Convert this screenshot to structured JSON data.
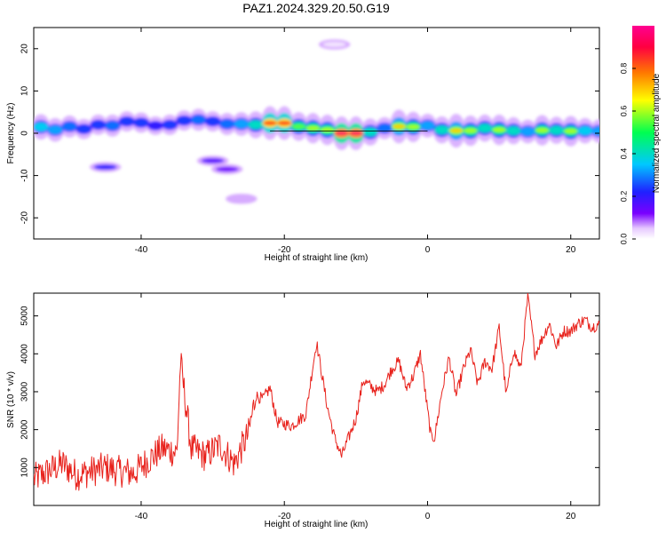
{
  "title": "PAZ1.2024.329.20.50.G19",
  "chart_data": [
    {
      "type": "heatmap",
      "xlabel": "Height of straight line (km)",
      "ylabel": "Frequency (Hz)",
      "xlim": [
        -55,
        24
      ],
      "ylim": [
        -25,
        25
      ],
      "xticks": [
        -40,
        -20,
        0,
        20
      ],
      "yticks": [
        -20,
        -10,
        0,
        10,
        20
      ],
      "colorbar": {
        "label": "Normalized spectral amplitude",
        "range": [
          0,
          1
        ],
        "ticks": [
          0.0,
          0.2,
          0.4,
          0.6,
          0.8
        ],
        "tick_labels": [
          "0.0",
          "0.2",
          "0.4",
          "0.6",
          "0.8"
        ],
        "colormap": [
          "#ffffff",
          "#e6c8ff",
          "#7a00ff",
          "#2020ff",
          "#00c8ff",
          "#00ff50",
          "#ffff00",
          "#ff7800",
          "#ff0040",
          "#ff0090"
        ]
      },
      "ridge": [
        {
          "x": -54,
          "f": 1.5,
          "a": 0.45
        },
        {
          "x": -52,
          "f": 0.8,
          "a": 0.4
        },
        {
          "x": -50,
          "f": 1.6,
          "a": 0.35
        },
        {
          "x": -48,
          "f": 1.0,
          "a": 0.3
        },
        {
          "x": -46,
          "f": 2.0,
          "a": 0.3
        },
        {
          "x": -44,
          "f": 1.8,
          "a": 0.35
        },
        {
          "x": -42,
          "f": 2.8,
          "a": 0.3
        },
        {
          "x": -40,
          "f": 2.5,
          "a": 0.3
        },
        {
          "x": -38,
          "f": 1.8,
          "a": 0.25
        },
        {
          "x": -36,
          "f": 2.0,
          "a": 0.3
        },
        {
          "x": -34,
          "f": 3.0,
          "a": 0.3
        },
        {
          "x": -32,
          "f": 3.2,
          "a": 0.35
        },
        {
          "x": -30,
          "f": 2.8,
          "a": 0.3
        },
        {
          "x": -28,
          "f": 2.2,
          "a": 0.35
        },
        {
          "x": -26,
          "f": 2.2,
          "a": 0.4
        },
        {
          "x": -24,
          "f": 2.0,
          "a": 0.5
        },
        {
          "x": -22,
          "f": 2.4,
          "a": 0.85
        },
        {
          "x": -20,
          "f": 2.4,
          "a": 0.85
        },
        {
          "x": -18,
          "f": 1.6,
          "a": 0.55
        },
        {
          "x": -16,
          "f": 1.2,
          "a": 0.6
        },
        {
          "x": -14,
          "f": 0.8,
          "a": 0.6
        },
        {
          "x": -12,
          "f": 0.0,
          "a": 0.95
        },
        {
          "x": -10,
          "f": 0.0,
          "a": 0.95
        },
        {
          "x": -8,
          "f": 0.3,
          "a": 0.5
        },
        {
          "x": -6,
          "f": 1.2,
          "a": 0.35
        },
        {
          "x": -4,
          "f": 1.6,
          "a": 0.7
        },
        {
          "x": -2,
          "f": 1.5,
          "a": 0.6
        },
        {
          "x": 0,
          "f": 1.8,
          "a": 0.4
        },
        {
          "x": 2,
          "f": 0.8,
          "a": 0.5
        },
        {
          "x": 4,
          "f": 0.6,
          "a": 0.7
        },
        {
          "x": 6,
          "f": 0.6,
          "a": 0.6
        },
        {
          "x": 8,
          "f": 1.2,
          "a": 0.5
        },
        {
          "x": 10,
          "f": 0.8,
          "a": 0.6
        },
        {
          "x": 12,
          "f": 0.6,
          "a": 0.5
        },
        {
          "x": 14,
          "f": 0.4,
          "a": 0.4
        },
        {
          "x": 16,
          "f": 0.7,
          "a": 0.6
        },
        {
          "x": 18,
          "f": 0.7,
          "a": 0.5
        },
        {
          "x": 20,
          "f": 0.5,
          "a": 0.6
        },
        {
          "x": 22,
          "f": 0.6,
          "a": 0.45
        },
        {
          "x": 24,
          "f": 0.5,
          "a": 0.4
        }
      ],
      "secondary_features": [
        {
          "x": -45,
          "f": -8.0,
          "a": 0.4
        },
        {
          "x": -30,
          "f": -6.5,
          "a": 0.3
        },
        {
          "x": -28,
          "f": -8.5,
          "a": 0.25
        },
        {
          "x": -26,
          "f": -15.5,
          "a": 0.12
        },
        {
          "x": -13,
          "f": 21.0,
          "a": 0.05
        }
      ]
    },
    {
      "type": "line",
      "xlabel": "Height of straight line (km)",
      "ylabel": "SNR (10 * v/v)",
      "xlim": [
        -55,
        24
      ],
      "ylim": [
        0,
        5600
      ],
      "xticks": [
        -40,
        -20,
        0,
        20
      ],
      "yticks": [
        1000,
        2000,
        3000,
        4000,
        5000
      ],
      "series": [
        {
          "color": "#e8221c",
          "x": [
            -55,
            -53,
            -51,
            -49,
            -47,
            -45,
            -43,
            -41,
            -39,
            -37,
            -35,
            -34.5,
            -33,
            -31,
            -29,
            -27,
            -25,
            -24,
            -23,
            -22,
            -21,
            -19,
            -17,
            -16,
            -15.5,
            -14,
            -13,
            -12,
            -10,
            -9,
            -7,
            -6,
            -5,
            -4,
            -3,
            -2,
            -1,
            0,
            0.5,
            1,
            2,
            3,
            4,
            5,
            6,
            7,
            8,
            9,
            10,
            11,
            12,
            13,
            14,
            15,
            16,
            17,
            18,
            19,
            20,
            21,
            22,
            23,
            24
          ],
          "y": [
            700,
            900,
            1100,
            800,
            900,
            1000,
            900,
            850,
            1200,
            1500,
            1400,
            3800,
            1500,
            1300,
            1600,
            1100,
            1900,
            2900,
            2800,
            3100,
            2200,
            2100,
            2400,
            3700,
            4300,
            2600,
            1800,
            1300,
            2300,
            3300,
            3000,
            3200,
            3600,
            3800,
            3100,
            3400,
            4000,
            2500,
            1800,
            1800,
            3000,
            3900,
            2900,
            3600,
            4100,
            3200,
            3800,
            3600,
            4700,
            2900,
            4100,
            3600,
            5500,
            4000,
            4400,
            4800,
            4200,
            4600,
            4600,
            4800,
            4900,
            4700,
            4800
          ]
        }
      ]
    }
  ]
}
